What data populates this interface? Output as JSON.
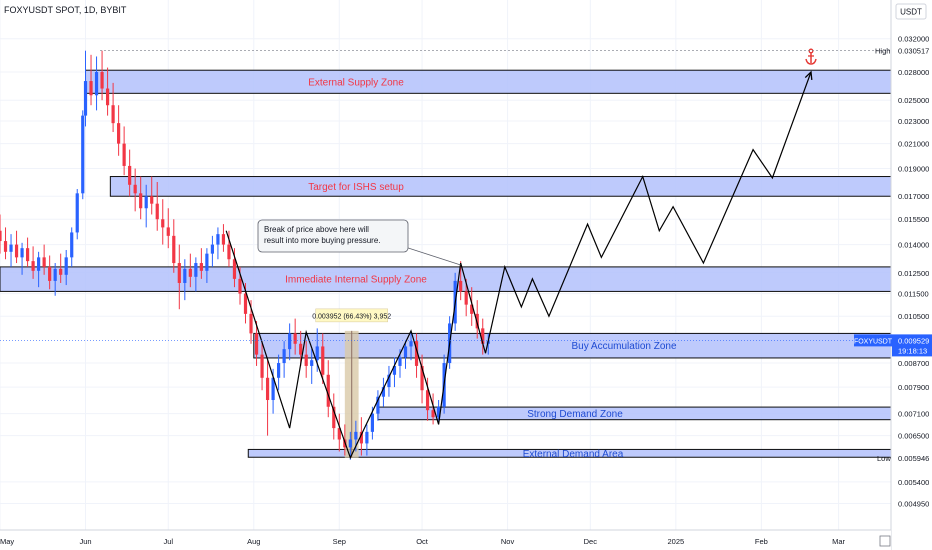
{
  "header": {
    "symbol_title": "FOXYUSDT SPOT, 1D, BYBIT",
    "currency": "USDT"
  },
  "colors": {
    "up": "#2962ff",
    "down": "#f23645",
    "zone_fill": "#b3c1fb",
    "zone_stroke": "#0d0d0d",
    "zone_text_red": "#f23645",
    "zone_text_blue": "#1e4bd2",
    "axis_text": "#131722",
    "grid": "#f0f3fa",
    "measure_fill": "#d9c9a8",
    "anchor": "#e53935",
    "price_tag": "#2962ff"
  },
  "chart_data": {
    "type": "candlestick",
    "y_scale": "log",
    "ylim": [
      0.00445,
      0.0345
    ],
    "x_start": "2024-05-01",
    "x_end": "2025-03-20",
    "x_ticks": [
      {
        "date": "2024-05-01",
        "label": "May"
      },
      {
        "date": "2024-06-01",
        "label": "Jun"
      },
      {
        "date": "2024-07-01",
        "label": "Jul"
      },
      {
        "date": "2024-08-01",
        "label": "Aug"
      },
      {
        "date": "2024-09-01",
        "label": "Sep"
      },
      {
        "date": "2024-10-01",
        "label": "Oct"
      },
      {
        "date": "2024-11-01",
        "label": "Nov"
      },
      {
        "date": "2024-12-01",
        "label": "Dec"
      },
      {
        "date": "2025-01-01",
        "label": "2025"
      },
      {
        "date": "2025-02-01",
        "label": "Feb"
      },
      {
        "date": "2025-03-01",
        "label": "Mar"
      }
    ],
    "y_ticks": [
      "0.032000",
      "0.028000",
      "0.025000",
      "0.023000",
      "0.021000",
      "0.019000",
      "0.017000",
      "0.015500",
      "0.014000",
      "0.012500",
      "0.011500",
      "0.010500",
      "0.008700",
      "0.007900",
      "0.007100",
      "0.006500",
      "0.005400",
      "0.004950"
    ],
    "high": {
      "label": "High",
      "value": "0.030517"
    },
    "low": {
      "label": "Low",
      "value": "0.005946"
    },
    "last_price": {
      "symbol": "FOXYUSDT",
      "value": "0.009529",
      "countdown": "19:18:13"
    },
    "zones": [
      {
        "label": "External Supply Zone",
        "color": "red",
        "start": "2024-06-01",
        "end": "2025-03-20",
        "top": 0.0282,
        "bottom": 0.0257
      },
      {
        "label": "Target for ISHS setup",
        "color": "red",
        "start": "2024-06-10",
        "end": "2025-03-20",
        "top": 0.0184,
        "bottom": 0.017
      },
      {
        "label": "Immediate Internal Supply Zone",
        "color": "red",
        "start": "2024-05-01",
        "end": "2025-03-20",
        "top": 0.0128,
        "bottom": 0.0116
      },
      {
        "label": "Buy Accumulation Zone",
        "color": "blue",
        "start": "2024-08-01",
        "end": "2025-03-20",
        "top": 0.0098,
        "bottom": 0.00888
      },
      {
        "label": "Strong Demand Zone",
        "color": "blue",
        "start": "2024-09-15",
        "end": "2025-03-20",
        "top": 0.00729,
        "bottom": 0.00693
      },
      {
        "label": "External Demand Area",
        "color": "blue",
        "start": "2024-07-30",
        "end": "2025-03-20",
        "top": 0.00615,
        "bottom": 0.00596
      }
    ],
    "callout": {
      "text": [
        "Break of price above here will",
        "result into more buying pressure."
      ],
      "target_date": "2024-10-15",
      "target_value": 0.0129
    },
    "measure": {
      "label": "0.003952 (66.43%) 3,952",
      "start": "2024-09-03",
      "end": "2024-09-08",
      "low": 0.00595,
      "high": 0.0099
    },
    "path": [
      [
        "2024-07-22",
        0.0148
      ],
      [
        "2024-08-14",
        0.0067
      ],
      [
        "2024-08-20",
        0.00985
      ],
      [
        "2024-09-05",
        0.00595
      ],
      [
        "2024-09-27",
        0.0099
      ],
      [
        "2024-10-07",
        0.0068
      ],
      [
        "2024-10-15",
        0.013
      ],
      [
        "2024-10-24",
        0.00905
      ],
      [
        "2024-10-31",
        0.0128
      ],
      [
        "2024-11-06",
        0.0109
      ],
      [
        "2024-11-10",
        0.0122
      ],
      [
        "2024-11-16",
        0.0105
      ],
      [
        "2024-11-30",
        0.0152
      ],
      [
        "2024-12-05",
        0.0133
      ],
      [
        "2024-12-20",
        0.0184
      ],
      [
        "2024-12-26",
        0.0148
      ],
      [
        "2024-12-31",
        0.0163
      ],
      [
        "2025-01-11",
        0.013
      ],
      [
        "2025-01-29",
        0.0205
      ],
      [
        "2025-02-05",
        0.0183
      ],
      [
        "2025-02-19",
        0.028
      ]
    ],
    "anchor_icon": "anchor-icon",
    "candles": [
      [
        "2024-05-01",
        0.0148,
        0.0158,
        0.0135,
        0.0142
      ],
      [
        "2024-05-03",
        0.0142,
        0.015,
        0.0132,
        0.0136
      ],
      [
        "2024-05-05",
        0.0136,
        0.0146,
        0.0128,
        0.014
      ],
      [
        "2024-05-07",
        0.014,
        0.0148,
        0.013,
        0.0133
      ],
      [
        "2024-05-09",
        0.0133,
        0.0141,
        0.0124,
        0.0138
      ],
      [
        "2024-05-11",
        0.0138,
        0.0144,
        0.0128,
        0.0131
      ],
      [
        "2024-05-13",
        0.0131,
        0.0139,
        0.0122,
        0.0126
      ],
      [
        "2024-05-15",
        0.0126,
        0.0136,
        0.0118,
        0.0133
      ],
      [
        "2024-05-17",
        0.0133,
        0.014,
        0.0124,
        0.0128
      ],
      [
        "2024-05-19",
        0.0128,
        0.0134,
        0.0117,
        0.0121
      ],
      [
        "2024-05-21",
        0.0121,
        0.013,
        0.0114,
        0.0127
      ],
      [
        "2024-05-23",
        0.0127,
        0.0135,
        0.012,
        0.0124
      ],
      [
        "2024-05-25",
        0.0124,
        0.0137,
        0.0119,
        0.0133
      ],
      [
        "2024-05-27",
        0.0133,
        0.015,
        0.0128,
        0.0147
      ],
      [
        "2024-05-29",
        0.0147,
        0.0175,
        0.0143,
        0.0172
      ],
      [
        "2024-05-31",
        0.0172,
        0.024,
        0.0168,
        0.0235
      ],
      [
        "2024-06-01",
        0.0235,
        0.0305,
        0.0225,
        0.027
      ],
      [
        "2024-06-03",
        0.027,
        0.03,
        0.0245,
        0.0255
      ],
      [
        "2024-06-05",
        0.0255,
        0.0298,
        0.024,
        0.028
      ],
      [
        "2024-06-07",
        0.028,
        0.0305,
        0.025,
        0.0262
      ],
      [
        "2024-06-09",
        0.0262,
        0.0285,
        0.0235,
        0.0245
      ],
      [
        "2024-06-11",
        0.0245,
        0.0268,
        0.022,
        0.0228
      ],
      [
        "2024-06-13",
        0.0228,
        0.0245,
        0.02,
        0.021
      ],
      [
        "2024-06-15",
        0.021,
        0.0225,
        0.0185,
        0.0192
      ],
      [
        "2024-06-17",
        0.0192,
        0.0205,
        0.017,
        0.0178
      ],
      [
        "2024-06-19",
        0.0178,
        0.019,
        0.016,
        0.0172
      ],
      [
        "2024-06-21",
        0.0172,
        0.0184,
        0.0155,
        0.0162
      ],
      [
        "2024-06-23",
        0.0162,
        0.0178,
        0.015,
        0.017
      ],
      [
        "2024-06-25",
        0.017,
        0.0184,
        0.0158,
        0.0165
      ],
      [
        "2024-06-27",
        0.0165,
        0.018,
        0.0148,
        0.0155
      ],
      [
        "2024-06-29",
        0.0155,
        0.0168,
        0.014,
        0.015
      ],
      [
        "2024-07-01",
        0.015,
        0.0162,
        0.0138,
        0.0145
      ],
      [
        "2024-07-03",
        0.0145,
        0.0155,
        0.0125,
        0.013
      ],
      [
        "2024-07-05",
        0.013,
        0.014,
        0.0108,
        0.012
      ],
      [
        "2024-07-07",
        0.012,
        0.0132,
        0.0112,
        0.0127
      ],
      [
        "2024-07-09",
        0.0127,
        0.0135,
        0.0118,
        0.0123
      ],
      [
        "2024-07-11",
        0.0123,
        0.0133,
        0.0116,
        0.013
      ],
      [
        "2024-07-13",
        0.013,
        0.0138,
        0.0122,
        0.0126
      ],
      [
        "2024-07-15",
        0.0126,
        0.0138,
        0.012,
        0.0135
      ],
      [
        "2024-07-17",
        0.0135,
        0.0145,
        0.0128,
        0.014
      ],
      [
        "2024-07-19",
        0.014,
        0.015,
        0.0132,
        0.0146
      ],
      [
        "2024-07-21",
        0.0146,
        0.0152,
        0.0136,
        0.014
      ],
      [
        "2024-07-23",
        0.014,
        0.0148,
        0.0128,
        0.0132
      ],
      [
        "2024-07-25",
        0.0132,
        0.0138,
        0.0118,
        0.0122
      ],
      [
        "2024-07-27",
        0.0122,
        0.0128,
        0.011,
        0.0115
      ],
      [
        "2024-07-29",
        0.0115,
        0.012,
        0.0102,
        0.0106
      ],
      [
        "2024-07-31",
        0.0106,
        0.0112,
        0.0094,
        0.0098
      ],
      [
        "2024-08-02",
        0.0098,
        0.0103,
        0.0086,
        0.009
      ],
      [
        "2024-08-04",
        0.009,
        0.0095,
        0.0078,
        0.0082
      ],
      [
        "2024-08-06",
        0.0082,
        0.0088,
        0.0065,
        0.0075
      ],
      [
        "2024-08-08",
        0.0075,
        0.0085,
        0.0071,
        0.0082
      ],
      [
        "2024-08-10",
        0.0082,
        0.009,
        0.0078,
        0.0087
      ],
      [
        "2024-08-12",
        0.0087,
        0.0095,
        0.0082,
        0.0092
      ],
      [
        "2024-08-14",
        0.0092,
        0.0102,
        0.0088,
        0.0098
      ],
      [
        "2024-08-16",
        0.0098,
        0.0104,
        0.009,
        0.0094
      ],
      [
        "2024-08-18",
        0.0094,
        0.0099,
        0.0086,
        0.009
      ],
      [
        "2024-08-20",
        0.009,
        0.0095,
        0.0082,
        0.0086
      ],
      [
        "2024-08-22",
        0.0086,
        0.0092,
        0.008,
        0.0088
      ],
      [
        "2024-08-24",
        0.0088,
        0.01,
        0.0084,
        0.0093
      ],
      [
        "2024-08-26",
        0.0093,
        0.0098,
        0.008,
        0.0083
      ],
      [
        "2024-08-28",
        0.0083,
        0.0088,
        0.007,
        0.0073
      ],
      [
        "2024-08-30",
        0.0073,
        0.0077,
        0.0064,
        0.0067
      ],
      [
        "2024-09-01",
        0.0067,
        0.0071,
        0.0061,
        0.0064
      ],
      [
        "2024-09-03",
        0.0064,
        0.0068,
        0.006,
        0.0062
      ],
      [
        "2024-09-05",
        0.0062,
        0.0066,
        0.0059,
        0.0064
      ],
      [
        "2024-09-07",
        0.0064,
        0.0069,
        0.0061,
        0.0066
      ],
      [
        "2024-09-09",
        0.0066,
        0.007,
        0.006,
        0.0063
      ],
      [
        "2024-09-11",
        0.0063,
        0.0068,
        0.006,
        0.0066
      ],
      [
        "2024-09-13",
        0.0066,
        0.0073,
        0.0064,
        0.0071
      ],
      [
        "2024-09-15",
        0.0071,
        0.0078,
        0.0069,
        0.0076
      ],
      [
        "2024-09-17",
        0.0076,
        0.0082,
        0.0073,
        0.0079
      ],
      [
        "2024-09-19",
        0.0079,
        0.0086,
        0.0076,
        0.0083
      ],
      [
        "2024-09-21",
        0.0083,
        0.0089,
        0.0079,
        0.0086
      ],
      [
        "2024-09-23",
        0.0086,
        0.0092,
        0.0082,
        0.0089
      ],
      [
        "2024-09-25",
        0.0089,
        0.0095,
        0.0085,
        0.0093
      ],
      [
        "2024-09-27",
        0.0093,
        0.0099,
        0.0088,
        0.0095
      ],
      [
        "2024-09-29",
        0.0095,
        0.0098,
        0.0082,
        0.0086
      ],
      [
        "2024-10-01",
        0.0086,
        0.009,
        0.0074,
        0.0078
      ],
      [
        "2024-10-03",
        0.0078,
        0.0082,
        0.0069,
        0.0072
      ],
      [
        "2024-10-05",
        0.0072,
        0.0077,
        0.0068,
        0.007
      ],
      [
        "2024-10-07",
        0.007,
        0.0075,
        0.0068,
        0.0073
      ],
      [
        "2024-10-09",
        0.0073,
        0.009,
        0.0071,
        0.0087
      ],
      [
        "2024-10-11",
        0.0087,
        0.0105,
        0.0085,
        0.0102
      ],
      [
        "2024-10-13",
        0.0102,
        0.0125,
        0.0099,
        0.0121
      ],
      [
        "2024-10-15",
        0.0121,
        0.0131,
        0.0112,
        0.0116
      ],
      [
        "2024-10-17",
        0.0116,
        0.0122,
        0.0105,
        0.011
      ],
      [
        "2024-10-19",
        0.011,
        0.0118,
        0.0101,
        0.0106
      ],
      [
        "2024-10-21",
        0.0106,
        0.0112,
        0.0096,
        0.01
      ],
      [
        "2024-10-23",
        0.01,
        0.0104,
        0.009,
        0.0094
      ],
      [
        "2024-10-25",
        0.0094,
        0.0098,
        0.009,
        0.0095
      ]
    ]
  }
}
